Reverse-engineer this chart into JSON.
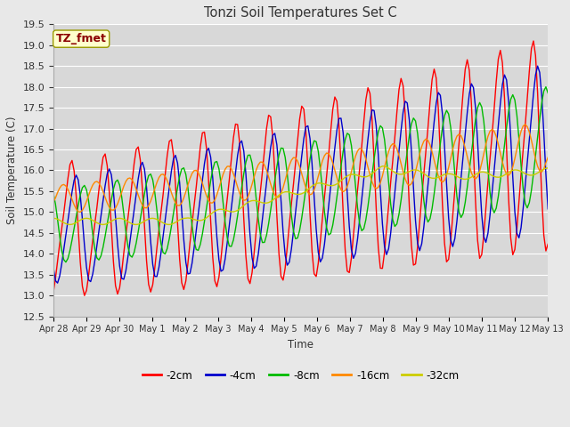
{
  "title": "Tonzi Soil Temperatures Set C",
  "xlabel": "Time",
  "ylabel": "Soil Temperature (C)",
  "ylim": [
    12.5,
    19.5
  ],
  "fig_width": 6.4,
  "fig_height": 4.8,
  "dpi": 100,
  "background_color": "#e8e8e8",
  "plot_bg_color": "#d8d8d8",
  "annotation_text": "TZ_fmet",
  "annotation_color": "#8b0000",
  "annotation_bg": "#ffffcc",
  "annotation_edge": "#999900",
  "series_labels": [
    "-2cm",
    "-4cm",
    "-8cm",
    "-16cm",
    "-32cm"
  ],
  "series_colors": [
    "#ff0000",
    "#0000cc",
    "#00bb00",
    "#ff8800",
    "#cccc00"
  ],
  "x_tick_labels": [
    "Apr 28",
    "Apr 29",
    "Apr 30",
    "May 1",
    "May 2",
    "May 3",
    "May 4",
    "May 5",
    "May 6",
    "May 7",
    "May 8",
    "May 9",
    "May 10",
    "May 11",
    "May 12",
    "May 13"
  ],
  "grid_color": "#ffffff",
  "spine_color": "#aaaaaa"
}
